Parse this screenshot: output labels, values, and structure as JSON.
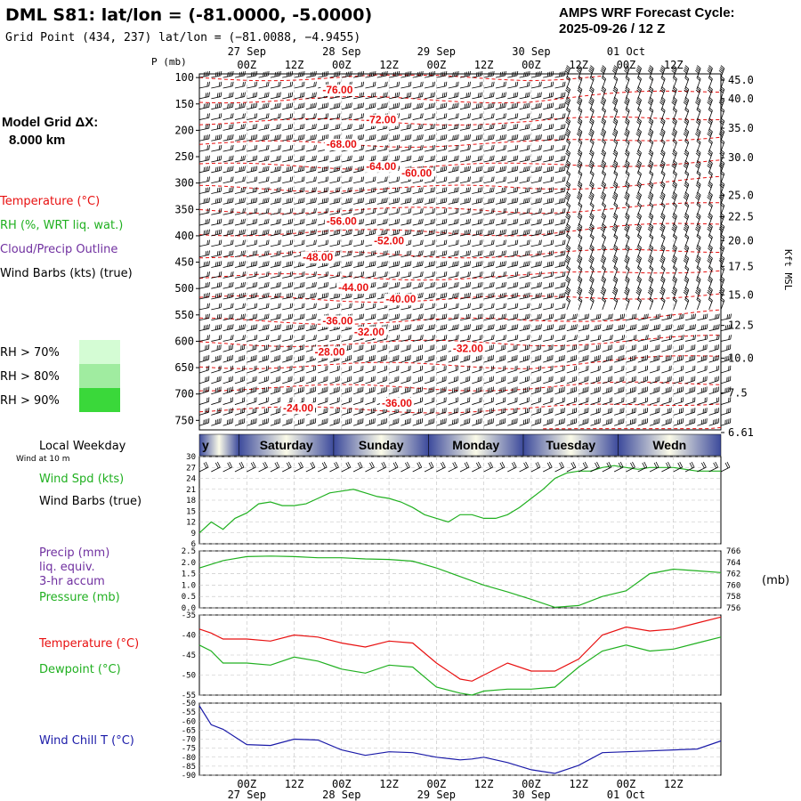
{
  "header": {
    "title": "DML S81:  lat/lon = (-81.0000, -5.0000)",
    "grid_point": "Grid Point (434, 237) lat/lon = (−81.0088, −4.9455)",
    "forecast_cycle_label": "AMPS WRF Forecast Cycle:",
    "forecast_cycle_value": "2025-09-26 / 12  Z"
  },
  "model_grid": {
    "label": "Model Grid ΔX:",
    "value": "8.000 km"
  },
  "legend": {
    "temperature": "Temperature (°C)",
    "rh": "RH (%, WRT liq. wat.)",
    "cloud": "Cloud/Precip Outline",
    "wind": "Wind Barbs (kts) (true)",
    "rh_bins": [
      {
        "label": "RH > 70%",
        "color": "#d4fcd4"
      },
      {
        "label": "RH > 80%",
        "color": "#a0eca0"
      },
      {
        "label": "RH > 90%",
        "color": "#3ad83a"
      }
    ]
  },
  "colors": {
    "temperature": "#e81010",
    "rh": "#20b020",
    "cloud": "#7030a0",
    "wind": "#000000",
    "pressure": "#20b020",
    "windchill": "#1a1aa8",
    "day_band_dark": "#3c4a9c",
    "day_band_light": "#fbfbe8"
  },
  "time_axis": {
    "hours": [
      0,
      132
    ],
    "dates": [
      {
        "label": "27 Sep",
        "hour": 12
      },
      {
        "label": "28 Sep",
        "hour": 36
      },
      {
        "label": "29 Sep",
        "hour": 60
      },
      {
        "label": "30 Sep",
        "hour": 84
      },
      {
        "label": "01 Oct",
        "hour": 108
      }
    ],
    "ticks": [
      {
        "label": "00Z",
        "hour": 12
      },
      {
        "label": "12Z",
        "hour": 24
      },
      {
        "label": "00Z",
        "hour": 36
      },
      {
        "label": "12Z",
        "hour": 48
      },
      {
        "label": "00Z",
        "hour": 60
      },
      {
        "label": "12Z",
        "hour": 72
      },
      {
        "label": "00Z",
        "hour": 84
      },
      {
        "label": "12Z",
        "hour": 96
      },
      {
        "label": "00Z",
        "hour": 108
      },
      {
        "label": "12Z",
        "hour": 120
      }
    ]
  },
  "weekday": {
    "title": "Local Weekday",
    "days": [
      {
        "label": "y",
        "start": 0,
        "end": 10
      },
      {
        "label": "Saturday",
        "start": 10,
        "end": 34
      },
      {
        "label": "Sunday",
        "start": 34,
        "end": 58
      },
      {
        "label": "Monday",
        "start": 58,
        "end": 82
      },
      {
        "label": "Tuesday",
        "start": 82,
        "end": 106
      },
      {
        "label": "Wedn",
        "start": 106,
        "end": 132
      }
    ]
  },
  "chart_data": [
    {
      "type": "contour",
      "panel": "cross_section",
      "ylabel": "P (mb)",
      "ylabel_right": "Kft MSL",
      "y_ticks": [
        100,
        150,
        200,
        250,
        300,
        350,
        400,
        450,
        500,
        550,
        600,
        650,
        700,
        750
      ],
      "kft_ticks": [
        {
          "label": "45.0",
          "p": 105
        },
        {
          "label": "40.0",
          "p": 140
        },
        {
          "label": "35.0",
          "p": 196
        },
        {
          "label": "30.0",
          "p": 252
        },
        {
          "label": "25.0",
          "p": 323
        },
        {
          "label": "22.5",
          "p": 364
        },
        {
          "label": "20.0",
          "p": 409
        },
        {
          "label": "17.5",
          "p": 458
        },
        {
          "label": "15.0",
          "p": 512
        },
        {
          "label": "12.5",
          "p": 570
        },
        {
          "label": "10.0",
          "p": 632
        },
        {
          "label": "7.5",
          "p": 698
        },
        {
          "label": "6.61",
          "p": 730
        }
      ],
      "temperature_labels": [
        {
          "text": "-76.00",
          "hour": 35,
          "p": 130
        },
        {
          "text": "-72.00",
          "hour": 46,
          "p": 187
        },
        {
          "text": "-68.00",
          "hour": 36,
          "p": 233
        },
        {
          "text": "-64.00",
          "hour": 46,
          "p": 275
        },
        {
          "text": "-60.00",
          "hour": 55,
          "p": 288
        },
        {
          "text": "-56.00",
          "hour": 36,
          "p": 379
        },
        {
          "text": "-52.00",
          "hour": 48,
          "p": 416
        },
        {
          "text": "-48.00",
          "hour": 30,
          "p": 447
        },
        {
          "text": "-44.00",
          "hour": 39,
          "p": 505
        },
        {
          "text": "-40.00",
          "hour": 51,
          "p": 527
        },
        {
          "text": "-36.00",
          "hour": 35,
          "p": 568
        },
        {
          "text": "-32.00",
          "hour": 43,
          "p": 589
        },
        {
          "text": "-28.00",
          "hour": 33,
          "p": 627
        },
        {
          "text": "-32.00",
          "hour": 68,
          "p": 620
        },
        {
          "text": "-24.00",
          "hour": 25,
          "p": 733
        },
        {
          "text": "-36.00",
          "hour": 50,
          "p": 724
        }
      ]
    },
    {
      "type": "line",
      "panel": "wind_speed",
      "label": "Wind Spd (kts)",
      "barb_label": "Wind Barbs (true)",
      "subtitle": "Wind at 10 m",
      "ylim": [
        6,
        30
      ],
      "y_ticks": [
        6,
        9,
        12,
        15,
        18,
        21,
        24,
        27,
        30
      ],
      "x": [
        0,
        3,
        6,
        9,
        12,
        15,
        18,
        21,
        24,
        27,
        30,
        33,
        36,
        39,
        42,
        45,
        48,
        51,
        54,
        57,
        60,
        63,
        66,
        69,
        72,
        75,
        78,
        81,
        84,
        87,
        90,
        93,
        96,
        99,
        102,
        105,
        108,
        111,
        114,
        117,
        120,
        123,
        126,
        129,
        132
      ],
      "values": [
        9,
        12,
        10,
        13,
        14.5,
        17,
        17.5,
        16.5,
        16.5,
        17,
        18.5,
        20,
        20.5,
        21,
        20,
        19,
        18.5,
        17.5,
        16,
        14,
        13,
        12,
        14,
        14,
        13,
        13,
        14,
        16,
        18.5,
        21,
        24,
        25.5,
        26,
        26,
        27,
        27.5,
        27,
        26.5,
        27,
        27,
        27,
        26.5,
        26,
        26,
        26
      ]
    },
    {
      "type": "line",
      "panel": "pressure",
      "labels": [
        "Precip (mm)",
        "liq. equiv.",
        "3-hr accum",
        "Pressure (mb)"
      ],
      "ylabel_right": "(mb)",
      "ylim_left": [
        0,
        2.5
      ],
      "y_ticks_left": [
        "0.0",
        "0.5",
        "1.0",
        "1.5",
        "2.0",
        "2.5"
      ],
      "ylim_right": [
        756,
        766
      ],
      "y_ticks_right": [
        756,
        758,
        760,
        762,
        764,
        766
      ],
      "series": [
        {
          "name": "Pressure (mb)",
          "x": [
            0,
            6,
            12,
            18,
            24,
            30,
            36,
            42,
            48,
            54,
            60,
            66,
            72,
            78,
            84,
            90,
            96,
            102,
            108,
            114,
            120,
            126,
            132
          ],
          "values": [
            763.0,
            764.3,
            765.0,
            765.1,
            765.0,
            764.8,
            764.8,
            764.6,
            764.5,
            764.2,
            763.0,
            761.5,
            760.0,
            758.8,
            757.5,
            756.1,
            756.4,
            758.0,
            759.0,
            762.0,
            762.8,
            762.5,
            762.2
          ]
        }
      ]
    },
    {
      "type": "line",
      "panel": "temperature",
      "ylim": [
        -55,
        -35
      ],
      "y_ticks": [
        -55,
        -50,
        -45,
        -40,
        -35
      ],
      "series": [
        {
          "name": "Temperature (°C)",
          "x": [
            0,
            3,
            6,
            12,
            18,
            24,
            30,
            36,
            42,
            48,
            54,
            60,
            66,
            69,
            72,
            78,
            84,
            90,
            96,
            102,
            108,
            114,
            120,
            126,
            132
          ],
          "values": [
            -38.5,
            -39.5,
            -41,
            -41,
            -41.5,
            -40,
            -40.5,
            -42,
            -43,
            -41.5,
            -42,
            -47,
            -51,
            -51.5,
            -50,
            -47,
            -49,
            -49,
            -46,
            -40,
            -38,
            -39,
            -38.5,
            -37,
            -35.5
          ]
        },
        {
          "name": "Dewpoint (°C)",
          "x": [
            0,
            3,
            6,
            12,
            18,
            24,
            30,
            36,
            42,
            48,
            54,
            60,
            66,
            69,
            72,
            78,
            84,
            90,
            96,
            102,
            108,
            114,
            120,
            126,
            132
          ],
          "values": [
            -42.5,
            -44,
            -47,
            -47,
            -47.5,
            -45.5,
            -46.5,
            -48.5,
            -49.5,
            -47.5,
            -48,
            -53,
            -54.5,
            -55,
            -54,
            -53.5,
            -53.5,
            -53,
            -48,
            -44,
            -42.5,
            -44,
            -43.5,
            -42,
            -40.5
          ]
        }
      ]
    },
    {
      "type": "line",
      "panel": "windchill",
      "ylim": [
        -90,
        -50
      ],
      "y_ticks": [
        -90,
        -85,
        -80,
        -75,
        -70,
        -65,
        -60,
        -55,
        -50
      ],
      "series": [
        {
          "name": "Wind Chill T (°C)",
          "x": [
            0,
            3,
            6,
            12,
            18,
            24,
            30,
            36,
            42,
            48,
            54,
            60,
            66,
            69,
            72,
            78,
            84,
            90,
            96,
            102,
            108,
            114,
            120,
            126,
            132
          ],
          "values": [
            -51.5,
            -62,
            -64.5,
            -73,
            -73.5,
            -70,
            -70.5,
            -76,
            -79,
            -77,
            -77.5,
            -80,
            -81.5,
            -81,
            -80,
            -83,
            -87,
            -89,
            -84.5,
            -77.5,
            -77,
            -76.5,
            -76,
            -75.5,
            -71
          ]
        }
      ]
    }
  ]
}
